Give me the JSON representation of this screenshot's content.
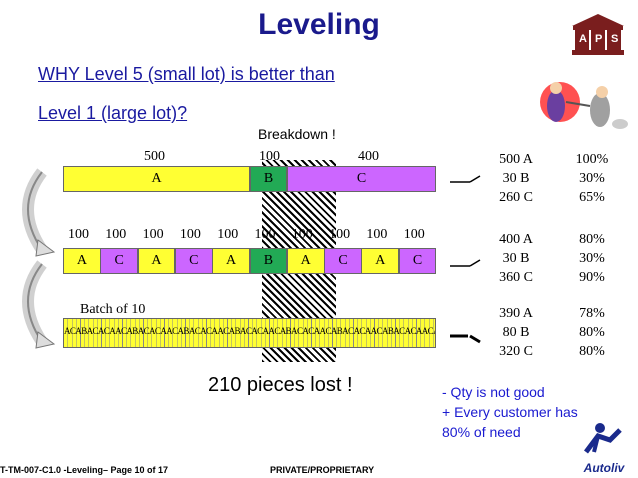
{
  "title": "Leveling",
  "question": {
    "line1": "WHY Level 5 (small lot) is better than",
    "line2": "Level 1 (large lot)?"
  },
  "breakdown_label": "Breakdown !",
  "logo": {
    "letters": [
      "A",
      "P",
      "S"
    ]
  },
  "row1": {
    "quantities": [
      "500",
      "100",
      "400"
    ],
    "segments": [
      {
        "label": "A",
        "color": "#ffff33"
      },
      {
        "label": "B",
        "color": "#22aa55"
      },
      {
        "label": "C",
        "color": "#cc66ff"
      }
    ],
    "stats": [
      {
        "qty": "500 A",
        "pct": "100%"
      },
      {
        "qty": "30 B",
        "pct": "30%"
      },
      {
        "qty": "260 C",
        "pct": "65%"
      }
    ]
  },
  "row2": {
    "quantities": [
      "100",
      "100",
      "100",
      "100",
      "100",
      "100",
      "100",
      "100",
      "100",
      "100"
    ],
    "segments": [
      {
        "label": "A",
        "color": "#ffff33"
      },
      {
        "label": "C",
        "color": "#cc66ff"
      },
      {
        "label": "A",
        "color": "#ffff33"
      },
      {
        "label": "C",
        "color": "#cc66ff"
      },
      {
        "label": "A",
        "color": "#ffff33"
      },
      {
        "label": "B",
        "color": "#22aa55"
      },
      {
        "label": "A",
        "color": "#ffff33"
      },
      {
        "label": "C",
        "color": "#cc66ff"
      },
      {
        "label": "A",
        "color": "#ffff33"
      },
      {
        "label": "C",
        "color": "#cc66ff"
      }
    ],
    "stats": [
      {
        "qty": "400 A",
        "pct": "80%"
      },
      {
        "qty": "30 B",
        "pct": "30%"
      },
      {
        "qty": "360 C",
        "pct": "90%"
      }
    ]
  },
  "row3": {
    "label": "Batch of 10",
    "sequence": "ACABACACAACABACACAACABACACAACABACACAACABACACAACABACACAACABACACAACABACACAACABACAC",
    "stats": [
      {
        "qty": "390 A",
        "pct": "78%"
      },
      {
        "qty": "80 B",
        "pct": "80%"
      },
      {
        "qty": "320 C",
        "pct": "80%"
      }
    ]
  },
  "lost_label": "210 pieces lost !",
  "notes": [
    "- Qty is not good",
    "+ Every customer has",
    "80% of need"
  ],
  "footer": {
    "left": "T-TM-007-C1.0 -Leveling– Page 10 of 17",
    "center": "PRIVATE/PROPRIETARY",
    "brand": "Autoliv"
  }
}
